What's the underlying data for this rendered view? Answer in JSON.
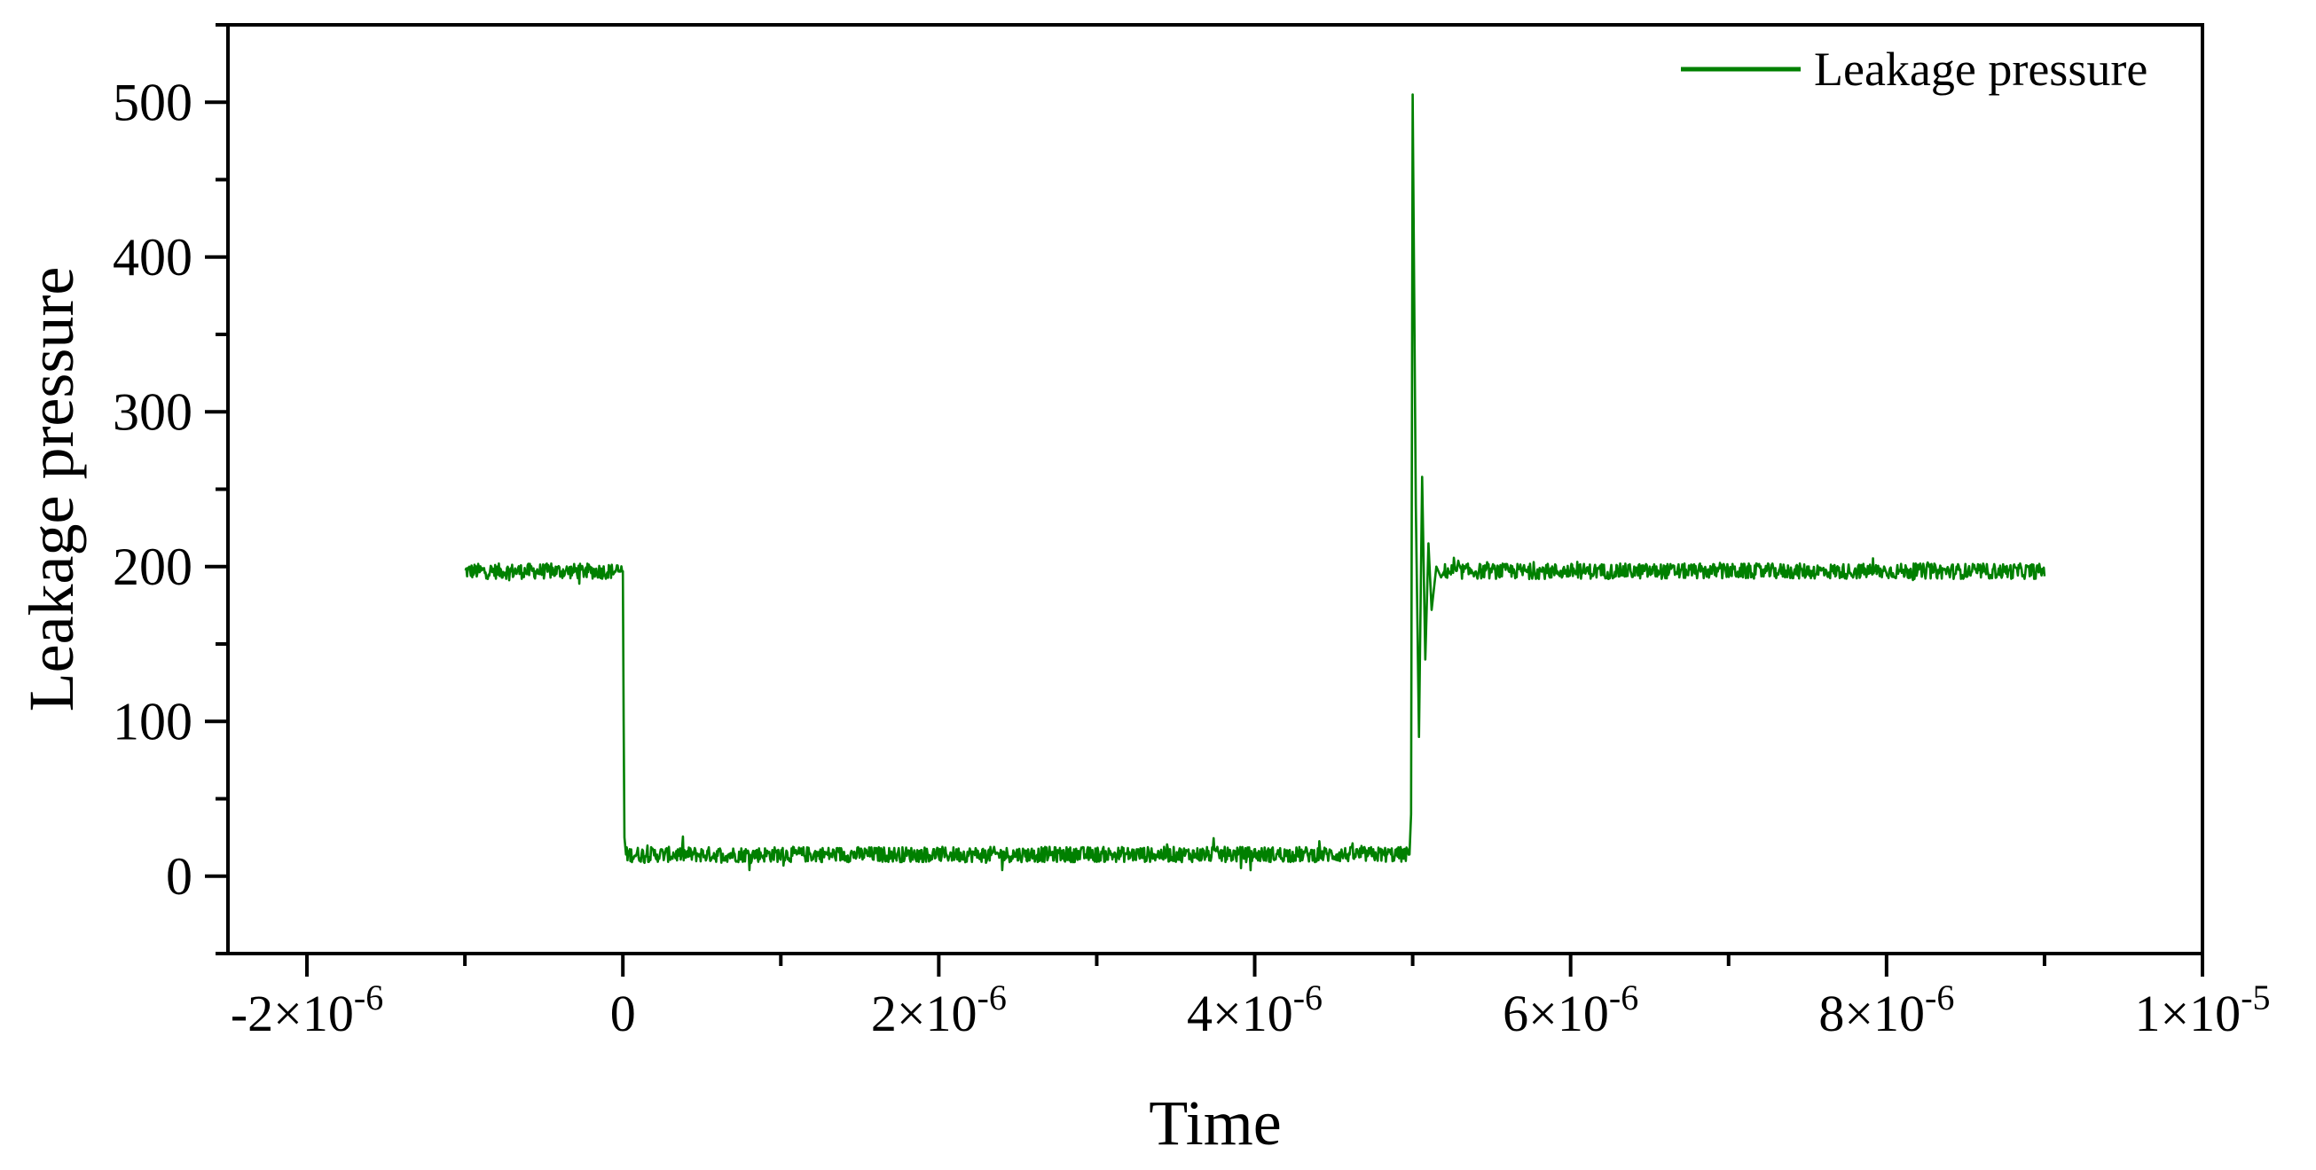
{
  "chart_data": {
    "type": "line",
    "title": "",
    "xlabel": "Time",
    "ylabel": "Leakage pressure",
    "xlim": [
      -2.5e-06,
      1e-05
    ],
    "ylim": [
      -50,
      550
    ],
    "grid": false,
    "legend_position": "top-right",
    "x_ticks": [
      {
        "value": -2e-06,
        "base": "-2×10",
        "exp": "-6"
      },
      {
        "value": 0,
        "base": "0",
        "exp": ""
      },
      {
        "value": 2e-06,
        "base": "2×10",
        "exp": "-6"
      },
      {
        "value": 4e-06,
        "base": "4×10",
        "exp": "-6"
      },
      {
        "value": 6e-06,
        "base": "6×10",
        "exp": "-6"
      },
      {
        "value": 8e-06,
        "base": "8×10",
        "exp": "-6"
      },
      {
        "value": 1e-05,
        "base": "1×10",
        "exp": "-5"
      }
    ],
    "y_ticks": [
      {
        "value": 0,
        "label": "0"
      },
      {
        "value": 100,
        "label": "100"
      },
      {
        "value": 200,
        "label": "200"
      },
      {
        "value": 300,
        "label": "300"
      },
      {
        "value": 400,
        "label": "400"
      },
      {
        "value": 500,
        "label": "500"
      }
    ],
    "series": [
      {
        "name": "Leakage pressure",
        "color": "#008000",
        "noise_amplitude": 5,
        "segments": [
          {
            "x_start": -1e-06,
            "x_end": 0.0,
            "level": 197
          },
          {
            "x_start": 2e-08,
            "x_end": 4.98e-06,
            "level": 14
          },
          {
            "x_start": 5.2e-06,
            "x_end": 9e-06,
            "level": 197
          }
        ],
        "transients": [
          {
            "x": 0.0,
            "y": 197
          },
          {
            "x": 5e-09,
            "y": 100
          },
          {
            "x": 1e-08,
            "y": 25
          },
          {
            "x": 2e-08,
            "y": 14
          },
          {
            "x": 4.98e-06,
            "y": 14
          },
          {
            "x": 4.99e-06,
            "y": 40
          },
          {
            "x": 5e-06,
            "y": 505
          },
          {
            "x": 5.02e-06,
            "y": 240
          },
          {
            "x": 5.04e-06,
            "y": 90
          },
          {
            "x": 5.06e-06,
            "y": 258
          },
          {
            "x": 5.08e-06,
            "y": 140
          },
          {
            "x": 5.1e-06,
            "y": 215
          },
          {
            "x": 5.12e-06,
            "y": 172
          },
          {
            "x": 5.15e-06,
            "y": 200
          },
          {
            "x": 5.18e-06,
            "y": 193
          },
          {
            "x": 5.2e-06,
            "y": 197
          }
        ]
      }
    ]
  }
}
